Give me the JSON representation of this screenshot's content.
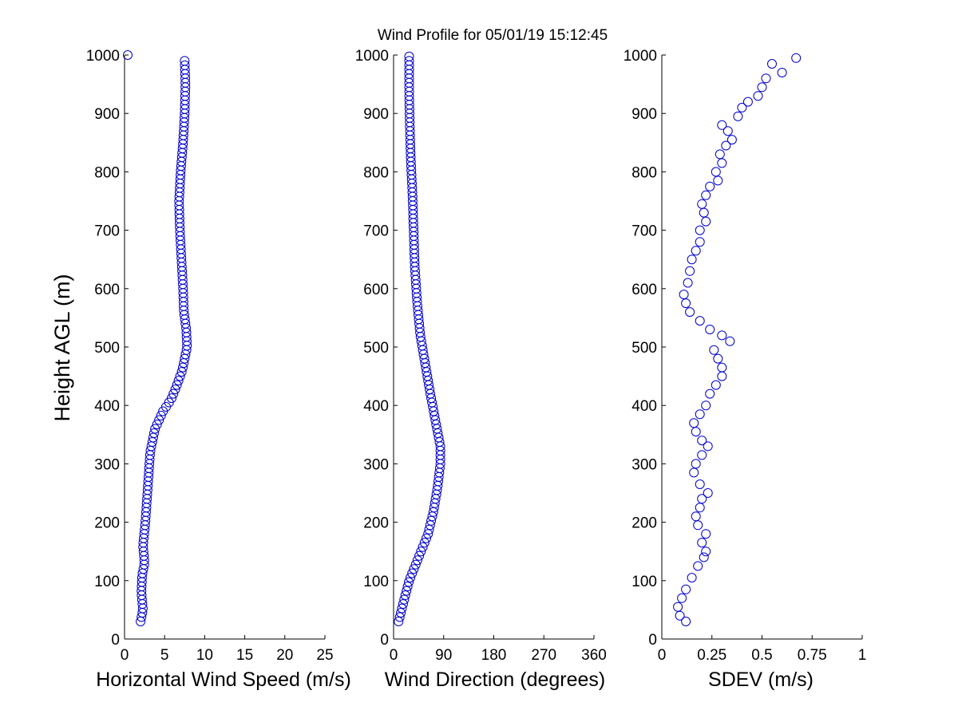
{
  "figure": {
    "title": "Wind Profile for  05/01/19 15:12:45",
    "ylabel": "Height AGL (m)"
  },
  "colors": {
    "marker": "#0000cc",
    "axis": "#000000",
    "background": "#ffffff"
  },
  "chart_data": [
    {
      "type": "scatter",
      "xlabel": "Horizontal Wind Speed (m/s)",
      "xlim": [
        0,
        25
      ],
      "xticks": [
        0,
        5,
        10,
        15,
        20,
        25
      ],
      "ylim": [
        0,
        1000
      ],
      "yticks": [
        0,
        100,
        200,
        300,
        400,
        500,
        600,
        700,
        800,
        900,
        1000
      ],
      "grid": false,
      "marker": "open-circle",
      "profile": [
        [
          30,
          2.0
        ],
        [
          50,
          2.3
        ],
        [
          80,
          2.1
        ],
        [
          110,
          2.2
        ],
        [
          130,
          2.5
        ],
        [
          160,
          2.3
        ],
        [
          200,
          2.6
        ],
        [
          240,
          2.8
        ],
        [
          280,
          3.0
        ],
        [
          320,
          3.2
        ],
        [
          360,
          3.8
        ],
        [
          390,
          4.8
        ],
        [
          410,
          5.8
        ],
        [
          430,
          6.4
        ],
        [
          460,
          7.2
        ],
        [
          500,
          7.8
        ],
        [
          530,
          7.7
        ],
        [
          560,
          7.4
        ],
        [
          600,
          7.3
        ],
        [
          650,
          7.1
        ],
        [
          700,
          6.9
        ],
        [
          750,
          6.8
        ],
        [
          800,
          7.0
        ],
        [
          850,
          7.3
        ],
        [
          900,
          7.5
        ],
        [
          950,
          7.6
        ],
        [
          990,
          7.5
        ]
      ],
      "extra_points": [
        [
          0.4,
          1000
        ]
      ]
    },
    {
      "type": "scatter",
      "xlabel": "Wind Direction (degrees)",
      "xlim": [
        0,
        360
      ],
      "xticks": [
        0,
        90,
        180,
        270,
        360
      ],
      "ylim": [
        0,
        1000
      ],
      "yticks": [
        0,
        100,
        200,
        300,
        400,
        500,
        600,
        700,
        800,
        900,
        1000
      ],
      "grid": false,
      "marker": "open-circle",
      "profile": [
        [
          30,
          9
        ],
        [
          60,
          17
        ],
        [
          100,
          28
        ],
        [
          140,
          45
        ],
        [
          180,
          62
        ],
        [
          220,
          72
        ],
        [
          260,
          79
        ],
        [
          300,
          84
        ],
        [
          330,
          84
        ],
        [
          370,
          76
        ],
        [
          420,
          66
        ],
        [
          470,
          57
        ],
        [
          520,
          48
        ],
        [
          580,
          42
        ],
        [
          640,
          38
        ],
        [
          700,
          36
        ],
        [
          760,
          34
        ],
        [
          820,
          31
        ],
        [
          880,
          29
        ],
        [
          940,
          28
        ],
        [
          1000,
          28
        ]
      ],
      "extra_points": []
    },
    {
      "type": "scatter",
      "xlabel": "SDEV  (m/s)",
      "xlim": [
        0,
        1
      ],
      "xticks": [
        0,
        0.25,
        0.5,
        0.75,
        1
      ],
      "xtick_labels": [
        "0",
        "0.25",
        "0.5",
        "0.75",
        "1"
      ],
      "ylim": [
        0,
        1000
      ],
      "yticks": [
        0,
        100,
        200,
        300,
        400,
        500,
        600,
        700,
        800,
        900,
        1000
      ],
      "grid": false,
      "marker": "open-circle",
      "points": [
        [
          0.12,
          30
        ],
        [
          0.09,
          40
        ],
        [
          0.08,
          55
        ],
        [
          0.1,
          70
        ],
        [
          0.12,
          85
        ],
        [
          0.15,
          105
        ],
        [
          0.18,
          125
        ],
        [
          0.21,
          140
        ],
        [
          0.22,
          150
        ],
        [
          0.2,
          165
        ],
        [
          0.22,
          180
        ],
        [
          0.18,
          195
        ],
        [
          0.17,
          210
        ],
        [
          0.19,
          225
        ],
        [
          0.2,
          240
        ],
        [
          0.23,
          250
        ],
        [
          0.19,
          265
        ],
        [
          0.16,
          285
        ],
        [
          0.17,
          300
        ],
        [
          0.2,
          315
        ],
        [
          0.23,
          330
        ],
        [
          0.2,
          340
        ],
        [
          0.17,
          355
        ],
        [
          0.16,
          370
        ],
        [
          0.19,
          385
        ],
        [
          0.22,
          400
        ],
        [
          0.24,
          420
        ],
        [
          0.27,
          435
        ],
        [
          0.3,
          450
        ],
        [
          0.3,
          465
        ],
        [
          0.28,
          480
        ],
        [
          0.26,
          495
        ],
        [
          0.34,
          510
        ],
        [
          0.3,
          520
        ],
        [
          0.24,
          530
        ],
        [
          0.19,
          545
        ],
        [
          0.14,
          560
        ],
        [
          0.12,
          575
        ],
        [
          0.11,
          590
        ],
        [
          0.13,
          610
        ],
        [
          0.14,
          630
        ],
        [
          0.15,
          650
        ],
        [
          0.17,
          665
        ],
        [
          0.19,
          680
        ],
        [
          0.19,
          700
        ],
        [
          0.22,
          715
        ],
        [
          0.21,
          730
        ],
        [
          0.2,
          745
        ],
        [
          0.22,
          760
        ],
        [
          0.24,
          775
        ],
        [
          0.28,
          785
        ],
        [
          0.27,
          800
        ],
        [
          0.3,
          815
        ],
        [
          0.29,
          830
        ],
        [
          0.32,
          845
        ],
        [
          0.35,
          855
        ],
        [
          0.33,
          870
        ],
        [
          0.3,
          880
        ],
        [
          0.38,
          895
        ],
        [
          0.4,
          910
        ],
        [
          0.43,
          920
        ],
        [
          0.48,
          930
        ],
        [
          0.5,
          945
        ],
        [
          0.52,
          960
        ],
        [
          0.6,
          970
        ],
        [
          0.55,
          985
        ],
        [
          0.67,
          995
        ]
      ]
    }
  ]
}
